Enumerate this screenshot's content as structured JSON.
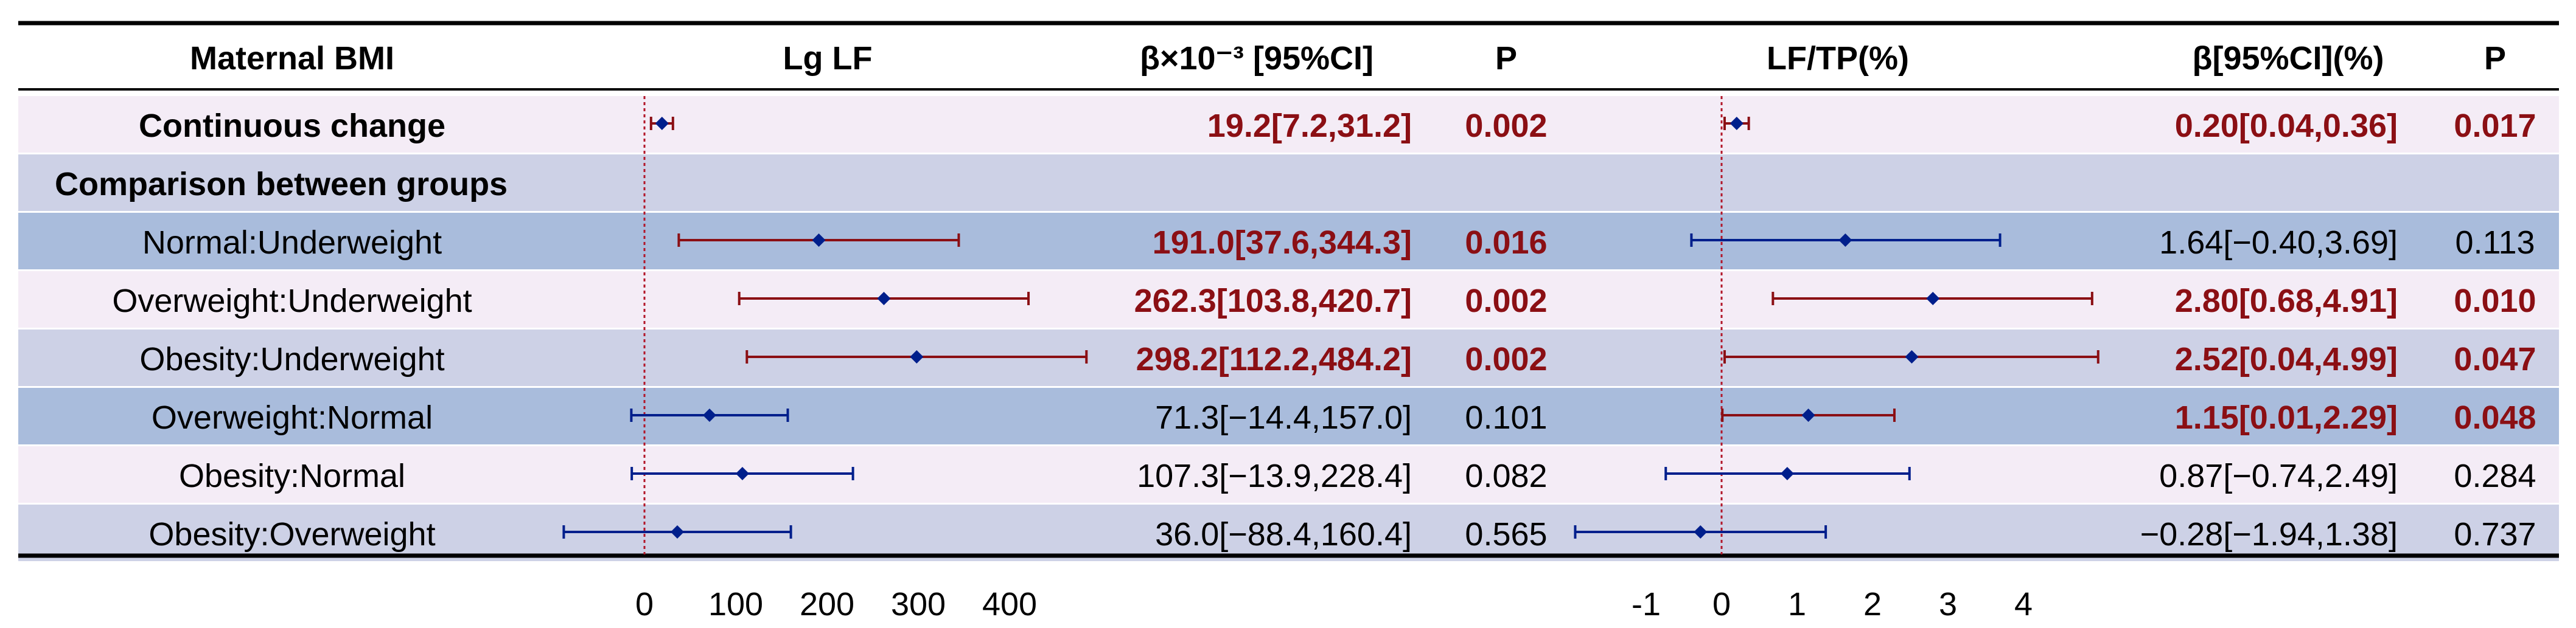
{
  "headers": {
    "group": "Maternal BMI",
    "lglf": "Lg LF",
    "beta1": "β×10⁻³ [95%CI]",
    "p1": "P",
    "lftp": "LF/TP(%)",
    "beta2": "β[95%CI](%)",
    "p2": "P"
  },
  "colors": {
    "significant": "#8b0f14",
    "nonsignificant": "#001f8c",
    "point": "#001f8c",
    "ref_line": "#b2182b",
    "row_pink": "#f4ecf6",
    "row_lavender": "#cdd1e6",
    "row_blue": "#a9bcdc"
  },
  "chart_data": [
    {
      "type": "forest",
      "xlabel": "",
      "ylabel": "",
      "xlim": [
        -90,
        420
      ],
      "xticks": [
        0,
        100,
        200,
        300,
        400
      ],
      "reference_line": 0,
      "rows": [
        {
          "label": "Continuous change",
          "bold": true,
          "bg": "pink",
          "est": 19.2,
          "lo": 7.2,
          "hi": 31.2,
          "text": "19.2[7.2,31.2]",
          "p": "0.002",
          "sig": true
        },
        {
          "label": "Comparison between groups",
          "bold": true,
          "bg": "lavender",
          "header": true
        },
        {
          "label": "Normal:Underweight",
          "bg": "blue",
          "est": 191.0,
          "lo": 37.6,
          "hi": 344.3,
          "text": "191.0[37.6,344.3]",
          "p": "0.016",
          "sig": true
        },
        {
          "label": "Overweight:Underweight",
          "bg": "pink",
          "est": 262.3,
          "lo": 103.8,
          "hi": 420.7,
          "text": "262.3[103.8,420.7]",
          "p": "0.002",
          "sig": true
        },
        {
          "label": "Obesity:Underweight",
          "bg": "lavender",
          "est": 298.2,
          "lo": 112.2,
          "hi": 484.2,
          "text": "298.2[112.2,484.2]",
          "p": "0.002",
          "sig": true
        },
        {
          "label": "Overweight:Normal",
          "bg": "blue",
          "est": 71.3,
          "lo": -14.4,
          "hi": 157.0,
          "text": "71.3[−14.4,157.0]",
          "p": "0.101",
          "sig": false
        },
        {
          "label": "Obesity:Normal",
          "bg": "pink",
          "est": 107.3,
          "lo": -13.9,
          "hi": 228.4,
          "text": "107.3[−13.9,228.4]",
          "p": "0.082",
          "sig": false
        },
        {
          "label": "Obesity:Overweight",
          "bg": "lavender",
          "est": 36.0,
          "lo": -88.4,
          "hi": 160.4,
          "text": "36.0[−88.4,160.4]",
          "p": "0.565",
          "sig": false
        }
      ]
    },
    {
      "type": "forest",
      "xlabel": "",
      "ylabel": "",
      "xlim": [
        -2.0,
        5.0
      ],
      "xticks": [
        -1,
        0,
        1,
        2,
        3,
        4
      ],
      "reference_line": 0,
      "rows": [
        {
          "label": "Continuous change",
          "est": 0.2,
          "lo": 0.04,
          "hi": 0.36,
          "text": "0.20[0.04,0.36]",
          "p": "0.017",
          "sig": true
        },
        {
          "label": "Comparison between groups",
          "header": true
        },
        {
          "label": "Normal:Underweight",
          "est": 1.64,
          "lo": -0.4,
          "hi": 3.69,
          "text": "1.64[−0.40,3.69]",
          "p": "0.113",
          "sig": false
        },
        {
          "label": "Overweight:Underweight",
          "est": 2.8,
          "lo": 0.68,
          "hi": 4.91,
          "text": "2.80[0.68,4.91]",
          "p": "0.010",
          "sig": true
        },
        {
          "label": "Obesity:Underweight",
          "est": 2.52,
          "lo": 0.04,
          "hi": 4.99,
          "text": "2.52[0.04,4.99]",
          "p": "0.047",
          "sig": true
        },
        {
          "label": "Overweight:Normal",
          "est": 1.15,
          "lo": 0.01,
          "hi": 2.29,
          "text": "1.15[0.01,2.29]",
          "p": "0.048",
          "sig": true
        },
        {
          "label": "Obesity:Normal",
          "est": 0.87,
          "lo": -0.74,
          "hi": 2.49,
          "text": "0.87[−0.74,2.49]",
          "p": "0.284",
          "sig": false
        },
        {
          "label": "Obesity:Overweight",
          "est": -0.28,
          "lo": -1.94,
          "hi": 1.38,
          "text": "−0.28[−1.94,1.38]",
          "p": "0.737",
          "sig": false
        }
      ]
    }
  ]
}
